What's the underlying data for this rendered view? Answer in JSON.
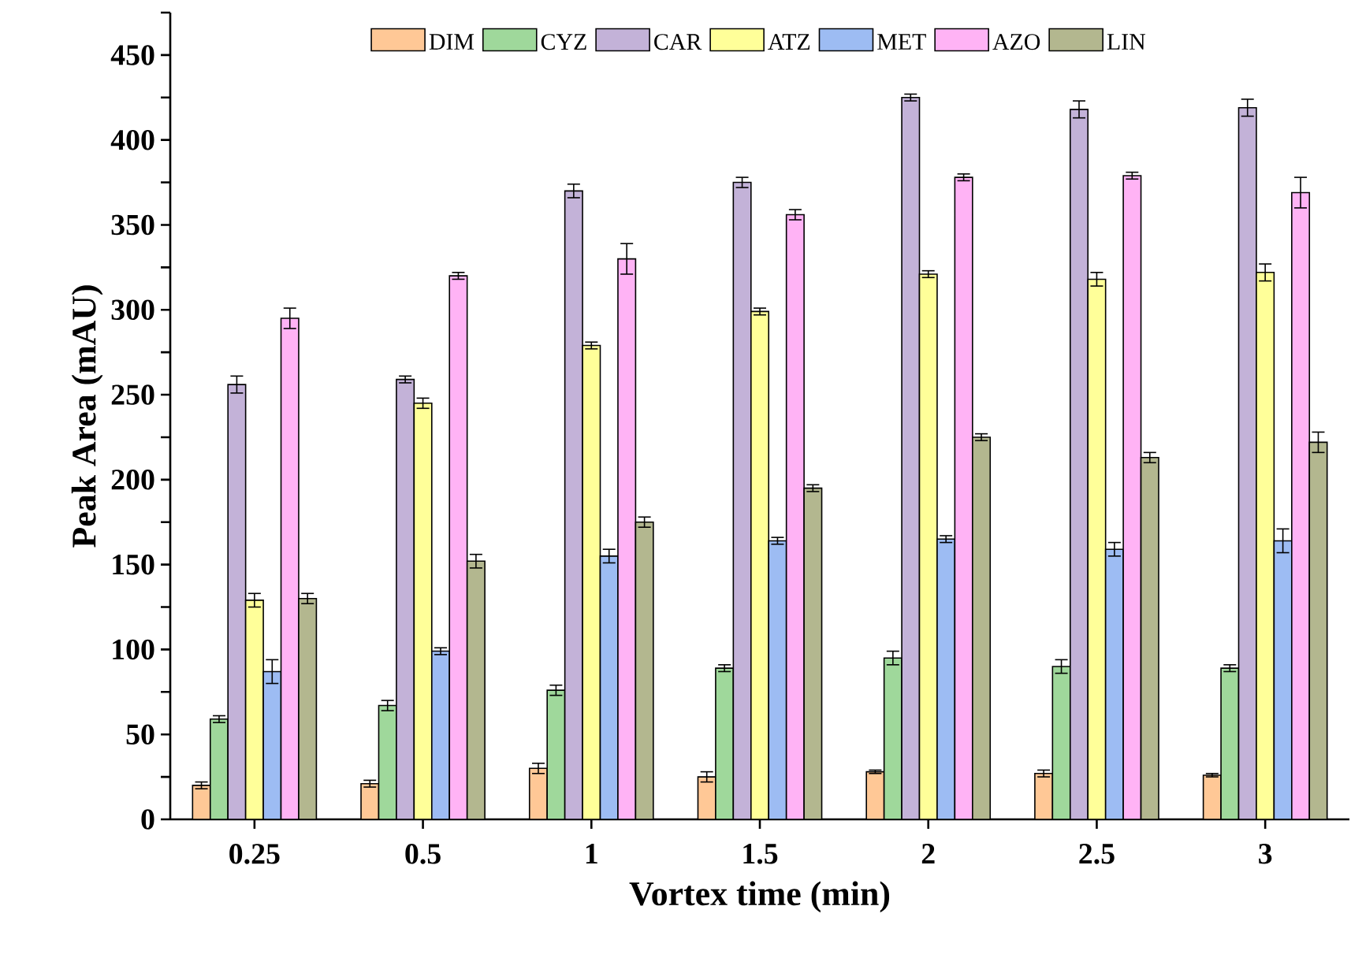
{
  "chart_data": {
    "type": "bar",
    "xlabel": "Vortex time (min)",
    "ylabel": "Peak Area (mAU)",
    "categories": [
      "0.25",
      "0.5",
      "1",
      "1.5",
      "2",
      "2.5",
      "3"
    ],
    "ylim": [
      0,
      475
    ],
    "yticks": [
      0,
      {
        "value": 25,
        "label": null
      },
      50,
      {
        "value": 75,
        "label": null
      },
      100,
      {
        "value": 125,
        "label": null
      },
      150,
      {
        "value": 175,
        "label": null
      },
      200,
      {
        "value": 225,
        "label": null
      },
      250,
      {
        "value": 275,
        "label": null
      },
      300,
      {
        "value": 325,
        "label": null
      },
      350,
      {
        "value": 375,
        "label": null
      },
      400,
      {
        "value": 425,
        "label": null
      },
      450,
      {
        "value": 475,
        "label": null
      }
    ],
    "legend": "top",
    "series": [
      {
        "name": "DIM",
        "color": "#ffc896",
        "values": [
          20,
          21,
          30,
          25,
          28,
          27,
          26
        ],
        "errors": [
          2,
          2,
          3,
          3,
          1,
          2,
          1
        ]
      },
      {
        "name": "CYZ",
        "color": "#9fd89b",
        "values": [
          59,
          67,
          76,
          89,
          95,
          90,
          89
        ],
        "errors": [
          2,
          3,
          3,
          2,
          4,
          4,
          2
        ]
      },
      {
        "name": "CAR",
        "color": "#c3b2d8",
        "values": [
          256,
          259,
          370,
          375,
          425,
          418,
          419
        ],
        "errors": [
          5,
          2,
          4,
          3,
          2,
          5,
          5
        ]
      },
      {
        "name": "ATZ",
        "color": "#ffff99",
        "values": [
          129,
          245,
          279,
          299,
          321,
          318,
          322
        ],
        "errors": [
          4,
          3,
          2,
          2,
          2,
          4,
          5
        ]
      },
      {
        "name": "MET",
        "color": "#9dbcf3",
        "values": [
          87,
          99,
          155,
          164,
          165,
          159,
          164
        ],
        "errors": [
          7,
          2,
          4,
          2,
          2,
          4,
          7
        ]
      },
      {
        "name": "AZO",
        "color": "#ffb3f5",
        "values": [
          295,
          320,
          330,
          356,
          378,
          379,
          369
        ],
        "errors": [
          6,
          2,
          9,
          3,
          2,
          2,
          9
        ]
      },
      {
        "name": "LIN",
        "color": "#b3b78f",
        "values": [
          130,
          152,
          175,
          195,
          225,
          213,
          222
        ],
        "errors": [
          3,
          4,
          3,
          2,
          2,
          3,
          6
        ]
      }
    ]
  }
}
